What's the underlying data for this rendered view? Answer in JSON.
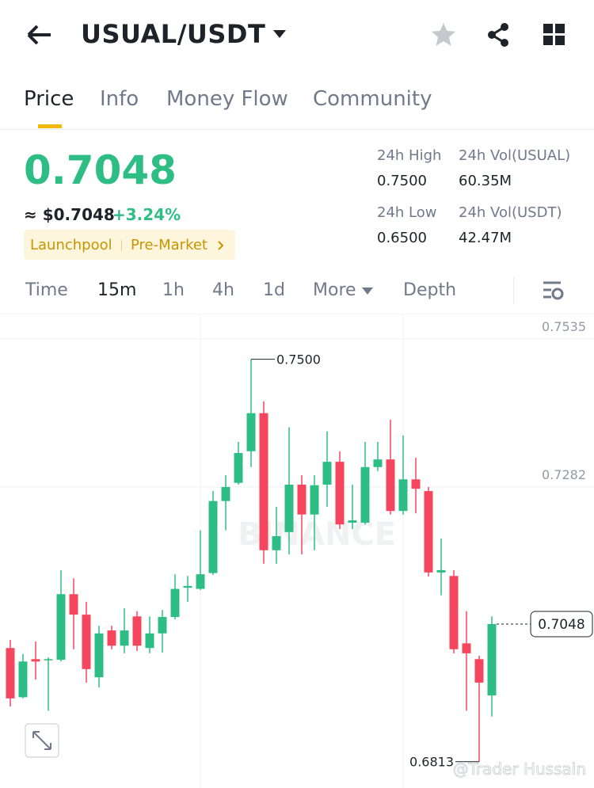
{
  "header": {
    "title": "USUAL/USDT"
  },
  "tabs": [
    "Price",
    "Info",
    "Money Flow",
    "Community"
  ],
  "price": {
    "last": "0.7048",
    "usd": "≈ $0.7048",
    "change": "+3.24%",
    "tags": [
      "Launchpool",
      "Pre-Market"
    ]
  },
  "stats": [
    {
      "label": "24h High",
      "value": "0.7500"
    },
    {
      "label": "24h Vol(USUAL)",
      "value": "60.35M"
    },
    {
      "label": "24h Low",
      "value": "0.6500"
    },
    {
      "label": "24h Vol(USDT)",
      "value": "42.47M"
    }
  ],
  "timeframes": [
    "Time",
    "15m",
    "1h",
    "4h",
    "1d",
    "More",
    "Depth"
  ],
  "chart_data": {
    "type": "candlestick",
    "open": [
      0.7007,
      0.6923,
      0.6988,
      0.6987,
      0.6987,
      0.7099,
      0.7064,
      0.6957,
      0.7037,
      0.7011,
      0.7061,
      0.7007,
      0.7032,
      0.706,
      0.711,
      0.7108,
      0.7135,
      0.7258,
      0.7289,
      0.7343,
      0.7408,
      0.7174,
      0.7205,
      0.7286,
      0.7235,
      0.7286,
      0.7325,
      0.7221,
      0.7221,
      0.7316,
      0.7329,
      0.7241,
      0.7295,
      0.7275,
      0.7136,
      0.713,
      0.7015,
      0.6988,
      0.6926
    ],
    "high": [
      0.7021,
      0.6997,
      0.7018,
      0.6991,
      0.714,
      0.7126,
      0.7086,
      0.7045,
      0.7045,
      0.7075,
      0.707,
      0.7061,
      0.7072,
      0.7133,
      0.713,
      0.7208,
      0.7275,
      0.7302,
      0.7359,
      0.75,
      0.7428,
      0.7248,
      0.7384,
      0.7302,
      0.7302,
      0.7377,
      0.7343,
      0.7286,
      0.7359,
      0.7359,
      0.7397,
      0.737,
      0.7332,
      0.7282,
      0.7194,
      0.714,
      0.707,
      0.6994,
      0.7061
    ],
    "low": [
      0.6907,
      0.6921,
      0.6953,
      0.69,
      0.6984,
      0.7005,
      0.6948,
      0.694,
      0.7005,
      0.6998,
      0.7002,
      0.6998,
      0.6999,
      0.7056,
      0.7086,
      0.7106,
      0.7132,
      0.7208,
      0.7286,
      0.7316,
      0.7151,
      0.7151,
      0.7167,
      0.7167,
      0.7174,
      0.7248,
      0.721,
      0.721,
      0.7218,
      0.7309,
      0.7235,
      0.7235,
      0.7237,
      0.7129,
      0.7097,
      0.6998,
      0.69,
      0.6813,
      0.689
    ],
    "close": [
      0.6921,
      0.6984,
      0.6984,
      0.6988,
      0.7099,
      0.7064,
      0.6971,
      0.7032,
      0.7011,
      0.7037,
      0.7011,
      0.7032,
      0.706,
      0.7108,
      0.7113,
      0.7133,
      0.7258,
      0.7282,
      0.734,
      0.7408,
      0.7174,
      0.7198,
      0.7286,
      0.7235,
      0.7285,
      0.7325,
      0.7218,
      0.7225,
      0.7316,
      0.7329,
      0.7241,
      0.7295,
      0.7279,
      0.7136,
      0.714,
      0.7005,
      0.6998,
      0.6948,
      0.7048
    ],
    "up_color": "#2ebd85",
    "down_color": "#f6465d",
    "ylim": [
      0.6768,
      0.7578
    ],
    "yticks": [
      0.7535,
      0.7282
    ],
    "high_label": {
      "value": 0.75,
      "label": "0.7500"
    },
    "low_label": {
      "value": 0.6813,
      "label": "0.6813"
    },
    "current_price": {
      "value": 0.7048,
      "label": "0.7048"
    },
    "watermark": "BINANCE",
    "credit": "@Trader Hussain"
  }
}
